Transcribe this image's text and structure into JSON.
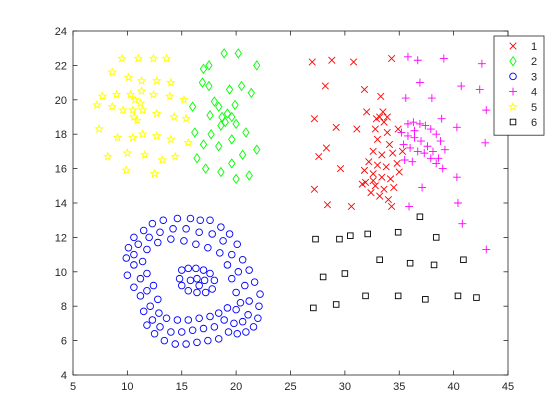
{
  "chart_data": {
    "type": "scatter",
    "title": "",
    "xlabel": "",
    "ylabel": "",
    "xlim": [
      5,
      45
    ],
    "ylim": [
      4,
      24
    ],
    "xticks": [
      5,
      10,
      15,
      20,
      25,
      30,
      35,
      40,
      45
    ],
    "yticks": [
      4,
      6,
      8,
      10,
      12,
      14,
      16,
      18,
      20,
      22,
      24
    ],
    "grid": false,
    "legend_position": "top-right",
    "series": [
      {
        "name": "1",
        "marker": "x",
        "color": "#ff0000",
        "points": [
          [
            27,
            22.2
          ],
          [
            28.8,
            22.3
          ],
          [
            30.8,
            22.2
          ],
          [
            31.8,
            20.6
          ],
          [
            33.3,
            20.2
          ],
          [
            34.3,
            22.4
          ],
          [
            28.2,
            20.8
          ],
          [
            27.2,
            18.9
          ],
          [
            28.3,
            17.2
          ],
          [
            29.2,
            18.4
          ],
          [
            31.1,
            18.3
          ],
          [
            32.0,
            19.3
          ],
          [
            27.6,
            16.7
          ],
          [
            29.6,
            16.0
          ],
          [
            27.2,
            14.8
          ],
          [
            28.4,
            13.9
          ],
          [
            30.6,
            13.8
          ],
          [
            31.6,
            15.1
          ],
          [
            34.3,
            13.8
          ],
          [
            33.2,
            19.0
          ],
          [
            33.6,
            18.7
          ],
          [
            32.8,
            18.3
          ],
          [
            33.9,
            18.1
          ],
          [
            33.0,
            17.7
          ],
          [
            34.1,
            17.4
          ],
          [
            32.6,
            17.0
          ],
          [
            33.4,
            16.8
          ],
          [
            34.4,
            16.9
          ],
          [
            32.2,
            16.4
          ],
          [
            33.0,
            16.2
          ],
          [
            33.8,
            16.1
          ],
          [
            34.8,
            16.3
          ],
          [
            31.8,
            15.9
          ],
          [
            32.6,
            15.7
          ],
          [
            33.4,
            15.5
          ],
          [
            34.2,
            15.4
          ],
          [
            31.9,
            15.2
          ],
          [
            32.8,
            15.0
          ],
          [
            33.6,
            14.8
          ],
          [
            34.5,
            14.9
          ],
          [
            32.4,
            14.6
          ],
          [
            33.2,
            14.4
          ],
          [
            34.0,
            14.2
          ],
          [
            35.0,
            15.8
          ],
          [
            35.3,
            17.0
          ],
          [
            34.9,
            18.3
          ],
          [
            33.5,
            19.3
          ],
          [
            32.9,
            18.9
          ],
          [
            33.9,
            19.0
          ],
          [
            32.6,
            15.3
          ]
        ]
      },
      {
        "name": "2",
        "marker": "diamond",
        "color": "#00ff00",
        "points": [
          [
            17,
            21.8
          ],
          [
            17.5,
            22.0
          ],
          [
            18.9,
            22.7
          ],
          [
            20.2,
            22.7
          ],
          [
            21.9,
            22.0
          ],
          [
            16.9,
            21.0
          ],
          [
            17.5,
            20.8
          ],
          [
            18.0,
            19.9
          ],
          [
            19.4,
            20.6
          ],
          [
            20.5,
            20.8
          ],
          [
            21.4,
            20.4
          ],
          [
            16.0,
            19.6
          ],
          [
            17.6,
            19.1
          ],
          [
            18.4,
            19.6
          ],
          [
            18.7,
            19.0
          ],
          [
            19.2,
            19.2
          ],
          [
            19.0,
            18.7
          ],
          [
            18.6,
            18.5
          ],
          [
            19.6,
            19.0
          ],
          [
            20.0,
            18.6
          ],
          [
            20.9,
            18.1
          ],
          [
            16.2,
            18.1
          ],
          [
            17.0,
            17.4
          ],
          [
            18.4,
            17.3
          ],
          [
            19.6,
            17.7
          ],
          [
            20.6,
            16.8
          ],
          [
            21.9,
            17.1
          ],
          [
            16.4,
            16.6
          ],
          [
            17.2,
            16.0
          ],
          [
            18.6,
            15.8
          ],
          [
            19.6,
            16.3
          ],
          [
            20.0,
            15.4
          ],
          [
            21.2,
            15.6
          ],
          [
            17.7,
            18.0
          ],
          [
            19.9,
            19.7
          ]
        ]
      },
      {
        "name": "3",
        "marker": "circle",
        "color": "#0000ff",
        "points": [
          [
            14.6,
            13.1
          ],
          [
            15.8,
            13.1
          ],
          [
            16.7,
            13.0
          ],
          [
            17.6,
            13.0
          ],
          [
            13.3,
            13.0
          ],
          [
            12.3,
            12.8
          ],
          [
            11.5,
            12.4
          ],
          [
            10.6,
            12.0
          ],
          [
            18.6,
            12.6
          ],
          [
            19.4,
            12.2
          ],
          [
            20.1,
            11.6
          ],
          [
            20.6,
            10.7
          ],
          [
            21.2,
            10.1
          ],
          [
            21.7,
            9.4
          ],
          [
            22.2,
            8.7
          ],
          [
            22.1,
            8.0
          ],
          [
            22.0,
            7.3
          ],
          [
            21.6,
            6.8
          ],
          [
            20.9,
            6.5
          ],
          [
            20.1,
            6.4
          ],
          [
            19.3,
            6.5
          ],
          [
            18.4,
            6.1
          ],
          [
            17.4,
            6.0
          ],
          [
            16.4,
            5.9
          ],
          [
            15.4,
            5.8
          ],
          [
            14.4,
            5.8
          ],
          [
            13.4,
            6.0
          ],
          [
            12.5,
            6.4
          ],
          [
            11.8,
            6.9
          ],
          [
            11.5,
            7.7
          ],
          [
            11.2,
            8.6
          ],
          [
            10.6,
            9.1
          ],
          [
            10.0,
            9.8
          ],
          [
            9.9,
            10.8
          ],
          [
            10.1,
            11.4
          ],
          [
            14.2,
            12.5
          ],
          [
            15.4,
            12.5
          ],
          [
            16.6,
            12.3
          ],
          [
            17.8,
            12.2
          ],
          [
            13.0,
            12.3
          ],
          [
            12.0,
            12.0
          ],
          [
            11.0,
            11.6
          ],
          [
            18.8,
            11.8
          ],
          [
            19.6,
            11.0
          ],
          [
            20.2,
            10.0
          ],
          [
            20.8,
            9.2
          ],
          [
            21.2,
            8.3
          ],
          [
            21.1,
            7.5
          ],
          [
            20.6,
            7.1
          ],
          [
            19.8,
            7.0
          ],
          [
            18.9,
            7.2
          ],
          [
            18.0,
            6.8
          ],
          [
            17.0,
            6.7
          ],
          [
            16.0,
            6.6
          ],
          [
            15.0,
            6.5
          ],
          [
            14.0,
            6.5
          ],
          [
            13.0,
            6.8
          ],
          [
            12.3,
            7.2
          ],
          [
            12.1,
            8.0
          ],
          [
            11.8,
            8.9
          ],
          [
            11.2,
            9.6
          ],
          [
            10.6,
            10.4
          ],
          [
            10.6,
            11.0
          ],
          [
            14.0,
            11.9
          ],
          [
            15.2,
            11.8
          ],
          [
            16.3,
            11.6
          ],
          [
            17.4,
            11.4
          ],
          [
            18.5,
            11.1
          ],
          [
            12.8,
            11.7
          ],
          [
            11.8,
            11.3
          ],
          [
            19.2,
            10.4
          ],
          [
            19.6,
            9.6
          ],
          [
            20.0,
            8.8
          ],
          [
            20.4,
            8.2
          ],
          [
            20.0,
            7.8
          ],
          [
            19.2,
            7.9
          ],
          [
            18.4,
            7.6
          ],
          [
            17.6,
            7.4
          ],
          [
            16.6,
            7.3
          ],
          [
            15.6,
            7.2
          ],
          [
            14.6,
            7.2
          ],
          [
            13.6,
            7.3
          ],
          [
            12.9,
            7.6
          ],
          [
            12.8,
            8.4
          ],
          [
            12.4,
            9.2
          ],
          [
            11.8,
            9.9
          ],
          [
            11.4,
            10.6
          ],
          [
            15.0,
            10.1
          ],
          [
            15.6,
            10.2
          ],
          [
            16.3,
            10.2
          ],
          [
            17.0,
            10.1
          ],
          [
            17.6,
            9.9
          ],
          [
            18.0,
            9.5
          ],
          [
            17.8,
            9.0
          ],
          [
            17.2,
            8.8
          ],
          [
            16.4,
            8.8
          ],
          [
            15.6,
            8.9
          ],
          [
            15.0,
            9.2
          ],
          [
            14.8,
            9.6
          ],
          [
            16.4,
            9.6
          ],
          [
            15.8,
            9.5
          ],
          [
            17.1,
            9.5
          ],
          [
            16.6,
            9.2
          ]
        ]
      },
      {
        "name": "4",
        "marker": "plus",
        "color": "#ff00ff",
        "points": [
          [
            35.8,
            22.5
          ],
          [
            36.7,
            22.3
          ],
          [
            39.1,
            22.4
          ],
          [
            42.6,
            22.1
          ],
          [
            36.9,
            21.0
          ],
          [
            40.7,
            20.8
          ],
          [
            42.4,
            20.6
          ],
          [
            35.6,
            20.1
          ],
          [
            38.0,
            20.1
          ],
          [
            43.0,
            19.4
          ],
          [
            40.3,
            18.4
          ],
          [
            42.9,
            17.5
          ],
          [
            35.8,
            18.6
          ],
          [
            36.3,
            18.7
          ],
          [
            36.9,
            18.6
          ],
          [
            37.4,
            18.5
          ],
          [
            37.9,
            18.3
          ],
          [
            38.4,
            18.0
          ],
          [
            38.8,
            17.6
          ],
          [
            39.2,
            17.1
          ],
          [
            35.2,
            18.1
          ],
          [
            35.8,
            17.9
          ],
          [
            36.4,
            17.8
          ],
          [
            37.0,
            17.6
          ],
          [
            37.6,
            17.3
          ],
          [
            38.1,
            17.0
          ],
          [
            38.6,
            16.6
          ],
          [
            35.4,
            17.4
          ],
          [
            36.0,
            17.2
          ],
          [
            36.7,
            17.0
          ],
          [
            37.3,
            16.9
          ],
          [
            37.9,
            16.6
          ],
          [
            38.4,
            16.3
          ],
          [
            39.0,
            16.0
          ],
          [
            36.2,
            16.4
          ],
          [
            35.5,
            16.5
          ],
          [
            37.1,
            14.9
          ],
          [
            40.3,
            15.5
          ],
          [
            35.9,
            13.8
          ],
          [
            40.4,
            14.0
          ],
          [
            40.8,
            12.8
          ],
          [
            43.0,
            11.3
          ],
          [
            36.4,
            18.2
          ],
          [
            38.9,
            18.9
          ]
        ]
      },
      {
        "name": "5",
        "marker": "star",
        "color": "#ffff00",
        "points": [
          [
            9.5,
            22.4
          ],
          [
            11.0,
            22.4
          ],
          [
            12.4,
            22.4
          ],
          [
            13.6,
            22.4
          ],
          [
            8.6,
            21.6
          ],
          [
            10.1,
            21.3
          ],
          [
            11.3,
            21.1
          ],
          [
            12.7,
            21.1
          ],
          [
            14.0,
            21.0
          ],
          [
            7.7,
            20.2
          ],
          [
            9.0,
            20.3
          ],
          [
            10.3,
            20.3
          ],
          [
            11.3,
            20.5
          ],
          [
            12.4,
            20.3
          ],
          [
            13.9,
            20.2
          ],
          [
            15.2,
            20.0
          ],
          [
            7.2,
            19.7
          ],
          [
            8.6,
            19.6
          ],
          [
            9.6,
            19.4
          ],
          [
            10.5,
            19.4
          ],
          [
            11.2,
            19.8
          ],
          [
            10.6,
            19.0
          ],
          [
            10.9,
            18.8
          ],
          [
            10.7,
            20.0
          ],
          [
            11.4,
            19.4
          ],
          [
            12.7,
            19.2
          ],
          [
            14.3,
            19.0
          ],
          [
            15.4,
            18.9
          ],
          [
            7.4,
            18.3
          ],
          [
            9.1,
            17.8
          ],
          [
            10.5,
            17.8
          ],
          [
            11.4,
            18.0
          ],
          [
            12.7,
            17.9
          ],
          [
            14.0,
            17.7
          ],
          [
            15.6,
            17.5
          ],
          [
            8.2,
            16.7
          ],
          [
            10.0,
            16.9
          ],
          [
            11.6,
            16.8
          ],
          [
            13.2,
            16.5
          ],
          [
            14.4,
            16.7
          ],
          [
            9.9,
            15.9
          ],
          [
            12.5,
            15.7
          ]
        ]
      },
      {
        "name": "6",
        "marker": "square",
        "color": "#000000",
        "points": [
          [
            36.9,
            13.2
          ],
          [
            27.3,
            11.9
          ],
          [
            29.5,
            11.9
          ],
          [
            30.5,
            12.1
          ],
          [
            32.1,
            12.2
          ],
          [
            34.9,
            12.3
          ],
          [
            38.4,
            12.0
          ],
          [
            33.2,
            10.7
          ],
          [
            36.0,
            10.5
          ],
          [
            38.2,
            10.4
          ],
          [
            40.9,
            10.7
          ],
          [
            28.0,
            9.7
          ],
          [
            30.0,
            9.9
          ],
          [
            29.2,
            8.1
          ],
          [
            31.9,
            8.6
          ],
          [
            34.9,
            8.6
          ],
          [
            37.4,
            8.4
          ],
          [
            40.4,
            8.6
          ],
          [
            42.1,
            8.5
          ],
          [
            27.1,
            7.9
          ]
        ]
      }
    ]
  }
}
